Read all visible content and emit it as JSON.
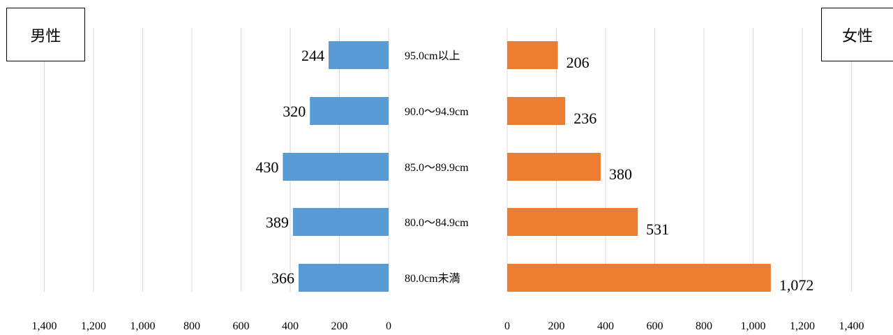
{
  "chart_data": [
    {
      "type": "bar",
      "orientation": "horizontal",
      "direction": "reversed",
      "legend_label": "男性",
      "color": "#5b9bd5",
      "categories": [
        "95.0cm以上",
        "90.0〜94.9cm",
        "85.0〜89.9cm",
        "80.0〜84.9cm",
        "80.0cm未満"
      ],
      "values": [
        244,
        320,
        430,
        389,
        366
      ],
      "value_labels": [
        "244",
        "320",
        "430",
        "389",
        "366"
      ],
      "xlim": [
        0,
        1400
      ],
      "x_ticks": [
        "1,400",
        "1,200",
        "1,000",
        "800",
        "600",
        "400",
        "200",
        "0"
      ],
      "grid": true
    },
    {
      "type": "bar",
      "orientation": "horizontal",
      "legend_label": "女性",
      "color": "#ed7d31",
      "categories": [
        "95.0cm以上",
        "90.0〜94.9cm",
        "85.0〜89.9cm",
        "80.0〜84.9cm",
        "80.0cm未満"
      ],
      "values": [
        206,
        236,
        380,
        531,
        1072
      ],
      "value_labels": [
        "206",
        "236",
        "380",
        "531",
        "1,072"
      ],
      "xlim": [
        0,
        1400
      ],
      "x_ticks": [
        "0",
        "200",
        "400",
        "600",
        "800",
        "1,000",
        "1,200",
        "1,400"
      ],
      "grid": true
    }
  ],
  "legend": {
    "male_label": "男性",
    "female_label": "女性"
  }
}
